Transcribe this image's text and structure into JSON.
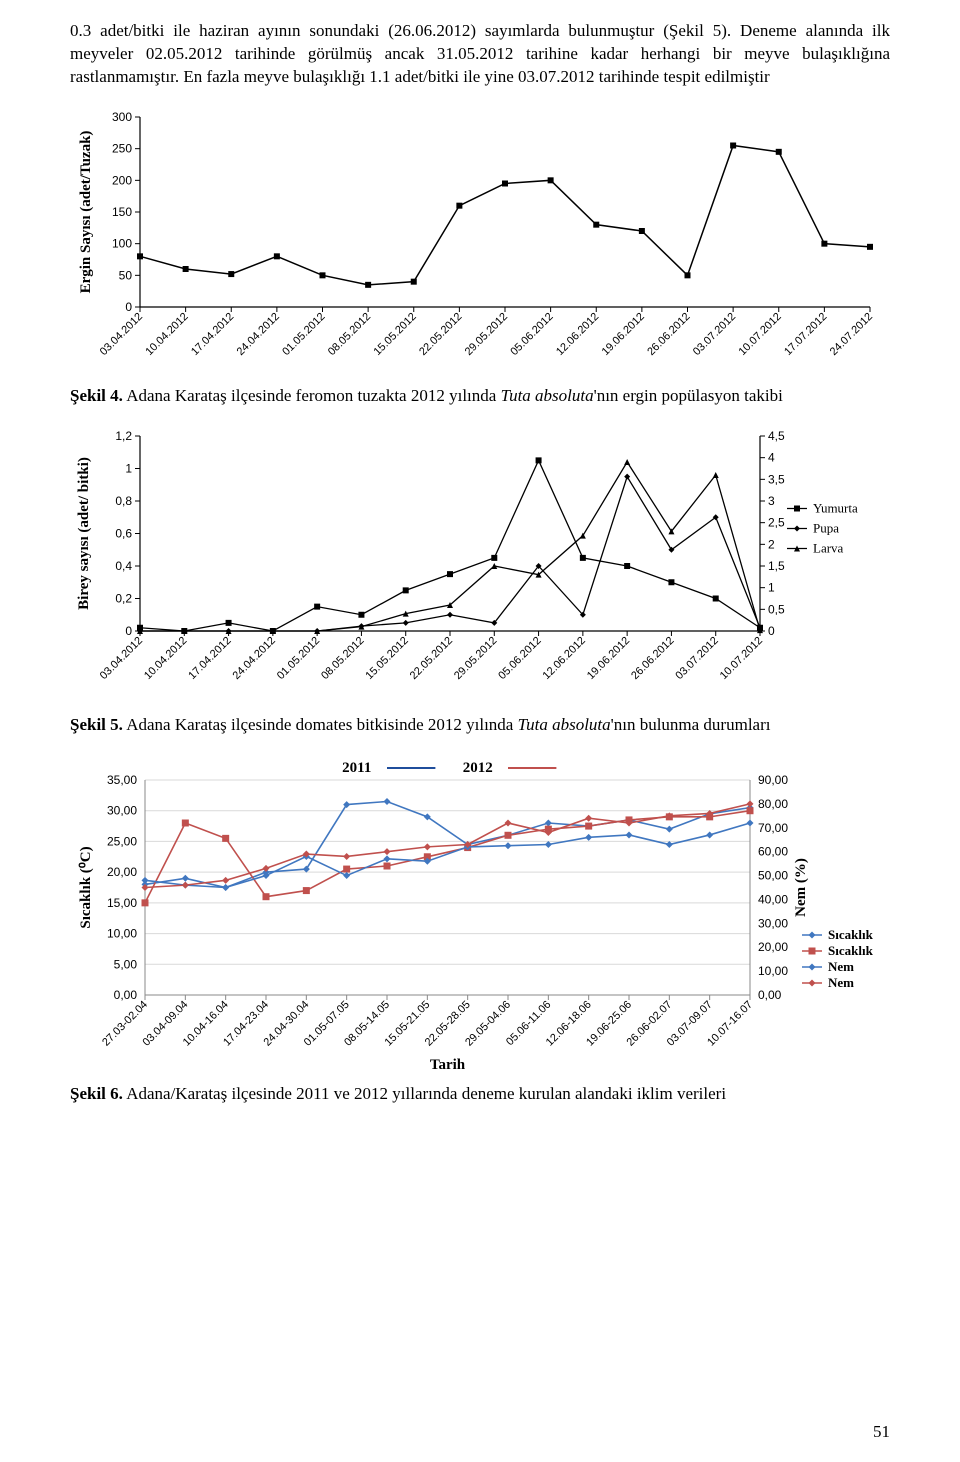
{
  "para1": "0.3 adet/bitki ile haziran ayının sonundaki (26.06.2012) sayımlarda bulunmuştur (Şekil 5). Deneme alanında ilk meyveler 02.05.2012 tarihinde görülmüş ancak 31.05.2012 tarihine kadar herhangi bir meyve bulaşıklığına rastlanmamıştır. En fazla meyve bulaşıklığı 1.1 adet/bitki ile yine 03.07.2012 tarihinde tespit edilmiştir",
  "fig4": {
    "label": "Şekil 4.",
    "text_a": " Adana Karataş ilçesinde feromon tuzakta 2012 yılında ",
    "italic": "Tuta absoluta",
    "text_b": "'nın ergin popülasyon takibi",
    "y_title": "Ergin Sayısı (adet/Tuzak)",
    "y_ticks": [
      0,
      50,
      100,
      150,
      200,
      250,
      300
    ],
    "x_dates": [
      "03.04.2012",
      "10.04.2012",
      "17.04.2012",
      "24.04.2012",
      "01.05.2012",
      "08.05.2012",
      "15.05.2012",
      "22.05.2012",
      "29.05.2012",
      "05.06.2012",
      "12.06.2012",
      "19.06.2012",
      "26.06.2012",
      "03.07.2012",
      "10.07.2012",
      "17.07.2012",
      "24.07.2012"
    ],
    "values": [
      80,
      60,
      52,
      80,
      50,
      35,
      40,
      160,
      195,
      200,
      130,
      120,
      50,
      255,
      245,
      100,
      95
    ],
    "line_color": "#000000",
    "marker_size": 6,
    "grid_color": "#ffffff",
    "bg": "#ffffff"
  },
  "fig5": {
    "label": "Şekil 5.",
    "text_a": " Adana Karataş ilçesinde domates bitkisinde 2012 yılında ",
    "italic": "Tuta absoluta",
    "text_b": "'nın bulunma durumları",
    "y_left_title": "Birey sayısı (adet/ bitki)",
    "y_left_ticks": [
      0,
      0.2,
      0.4,
      0.6,
      0.8,
      1,
      1.2
    ],
    "y_left_labels": [
      "0",
      "0,2",
      "0,4",
      "0,6",
      "0,8",
      "1",
      "1,2"
    ],
    "y_right_ticks": [
      0,
      0.5,
      1,
      1.5,
      2,
      2.5,
      3,
      3.5,
      4,
      4.5
    ],
    "y_right_labels": [
      "0",
      "0,5",
      "1",
      "1,5",
      "2",
      "2,5",
      "3",
      "3,5",
      "4",
      "4,5"
    ],
    "x_dates": [
      "03.04.2012",
      "10.04.2012",
      "17.04.2012",
      "24.04.2012",
      "01.05.2012",
      "08.05.2012",
      "15.05.2012",
      "22.05.2012",
      "29.05.2012",
      "05.06.2012",
      "12.06.2012",
      "19.06.2012",
      "26.06.2012",
      "03.07.2012",
      "10.07.2012"
    ],
    "yumurta": {
      "values": [
        0.02,
        0,
        0.05,
        0,
        0.15,
        0.1,
        0.25,
        0.35,
        0.45,
        1.05,
        0.45,
        0.4,
        0.3,
        0.2,
        0.02
      ],
      "color": "#000000",
      "marker": "square"
    },
    "pupa": {
      "values": [
        0,
        0,
        0,
        0,
        0,
        0.03,
        0.05,
        0.1,
        0.05,
        0.4,
        0.1,
        0.95,
        0.5,
        0.7,
        0.02
      ],
      "color": "#000000",
      "marker": "diamond"
    },
    "larva": {
      "values": [
        0,
        0,
        0,
        0,
        0,
        0.1,
        0.4,
        0.6,
        1.5,
        1.3,
        2.2,
        3.9,
        2.3,
        3.6,
        0.02
      ],
      "color": "#000000",
      "marker": "triangle",
      "axis": "right"
    },
    "legend": [
      "Yumurta",
      "Pupa",
      "Larva"
    ]
  },
  "fig6": {
    "label": "Şekil 6.",
    "text_a": " Adana/Karataş ilçesinde 2011 ve 2012 yıllarında deneme kurulan alandaki iklim verileri",
    "title_2011": "2011",
    "title_2012": "2012",
    "title_2011_color": "#1f4e9c",
    "title_2012_color": "#c0504d",
    "x_title": "Tarih",
    "y_left_title": "Sıcaklık (⁰C)",
    "y_right_title": "Nem (%)",
    "y_left_ticks": [
      0,
      5,
      10,
      15,
      20,
      25,
      30,
      35
    ],
    "y_left_labels": [
      "0,00",
      "5,00",
      "10,00",
      "15,00",
      "20,00",
      "25,00",
      "30,00",
      "35,00"
    ],
    "y_right_ticks": [
      0,
      10,
      20,
      30,
      40,
      50,
      60,
      70,
      80,
      90
    ],
    "y_right_labels": [
      "0,00",
      "10,00",
      "20,00",
      "30,00",
      "40,00",
      "50,00",
      "60,00",
      "70,00",
      "80,00",
      "90,00"
    ],
    "x_dates": [
      "27.03-02.04",
      "03.04-09.04",
      "10.04-16.04",
      "17.04-23.04",
      "24.04-30.04",
      "01.05-07.05",
      "08.05-14.05",
      "15.05-21.05",
      "22.05-28.05",
      "29.05-04.06",
      "05.06-11.06",
      "12.06-18.06",
      "19.06-25.06",
      "26.06-02.07",
      "03.07-09.07",
      "10.07-16.07"
    ],
    "sicaklik_2011": {
      "values": [
        18,
        19,
        17.5,
        20,
        20.5,
        31,
        31.5,
        29,
        24.5,
        26,
        28,
        27.5,
        28.5,
        27,
        29.5,
        30.5
      ],
      "color": "#4077c0",
      "marker": "diamond"
    },
    "sicaklik_2012": {
      "values": [
        15,
        28,
        25.5,
        16,
        17,
        20.5,
        21,
        22.5,
        24,
        26,
        27,
        27.5,
        28.5,
        29,
        29,
        30
      ],
      "color": "#c0504d",
      "marker": "square"
    },
    "nem_2011": {
      "values": [
        48,
        46,
        45,
        50,
        58,
        50,
        57,
        56,
        62,
        62.5,
        63,
        66,
        67,
        63,
        67,
        72
      ],
      "color": "#4077c0",
      "marker": "diamond"
    },
    "nem_2012": {
      "values": [
        45,
        46,
        48,
        53,
        59,
        58,
        60,
        62,
        63,
        72,
        68,
        74,
        72,
        75,
        76,
        80
      ],
      "color": "#c0504d",
      "marker": "diamond"
    },
    "legend": [
      {
        "label": "Sıcaklık",
        "color": "#4077c0",
        "marker": "diamond"
      },
      {
        "label": "Sıcaklık",
        "color": "#c0504d",
        "marker": "square"
      },
      {
        "label": "Nem",
        "color": "#4077c0",
        "marker": "diamond"
      },
      {
        "label": "Nem",
        "color": "#c0504d",
        "marker": "diamond"
      }
    ]
  },
  "page_number": "51"
}
